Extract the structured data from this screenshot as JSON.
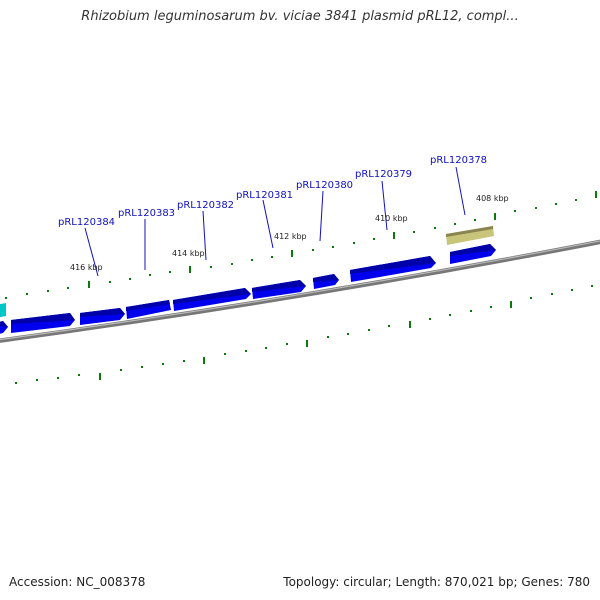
{
  "title": "Rhizobium leguminosarum bv. viciae 3841 plasmid pRL12, compl...",
  "footer": {
    "accession": "Accession: NC_008378",
    "summary": "Topology: circular; Length: 870,021 bp; Genes: 780"
  },
  "colors": {
    "gene_forward": "#0000ee",
    "gene_forward_shade": "#0000a0",
    "gene_other": "#00c8c8",
    "feature_tan": "#c8c47a",
    "feature_tan_shade": "#8a8450",
    "backbone": "#888888",
    "tick": "#006400",
    "label": "#1010c0"
  },
  "ticks": [
    {
      "label": "416 kbp"
    },
    {
      "label": "414 kbp"
    },
    {
      "label": "412 kbp"
    },
    {
      "label": "410 kbp"
    },
    {
      "label": "408 kbp"
    }
  ],
  "genes": [
    {
      "label": "pRL120384"
    },
    {
      "label": "pRL120383"
    },
    {
      "label": "pRL120382"
    },
    {
      "label": "pRL120381"
    },
    {
      "label": "pRL120380"
    },
    {
      "label": "pRL120379"
    },
    {
      "label": "pRL120378"
    }
  ]
}
